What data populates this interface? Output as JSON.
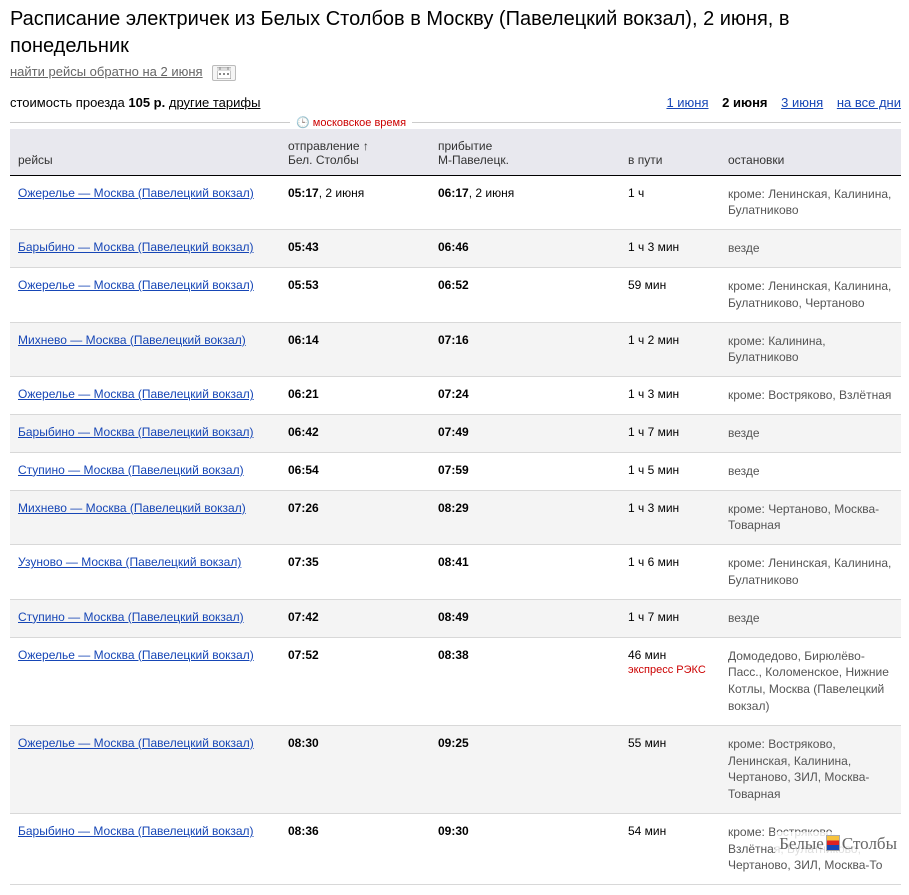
{
  "title": "Расписание электричек из Белых Столбов в Москву (Павелецкий вокзал), 2 июня, в понедельник",
  "subline": {
    "reverse_link": "найти рейсы обратно на 2 июня"
  },
  "fare": {
    "label": "стоимость проезда",
    "price": "105 р.",
    "tariffs_link": "другие тарифы"
  },
  "dateNav": {
    "prev": "1 июня",
    "current": "2 июня",
    "next": "3 июня",
    "all": "на все дни"
  },
  "moscowTimeLabel": "московское время",
  "headers": {
    "route": "рейсы",
    "dep1": "отправление ↑",
    "dep2": "Бел. Столбы",
    "arr1": "прибытие",
    "arr2": "М-Павелецк.",
    "dur": "в пути",
    "stops": "остановки"
  },
  "rows": [
    {
      "route": "Ожерелье — Москва (Павелецкий вокзал)",
      "depTime": "05:17",
      "depDate": ", 2 июня",
      "arrTime": "06:17",
      "arrDate": ", 2 июня",
      "dur": "1 ч",
      "express": "",
      "stops": "кроме: Ленинская, Калинина, Булатниково"
    },
    {
      "route": "Барыбино — Москва (Павелецкий вокзал)",
      "depTime": "05:43",
      "depDate": "",
      "arrTime": "06:46",
      "arrDate": "",
      "dur": "1 ч 3 мин",
      "express": "",
      "stops": "везде"
    },
    {
      "route": "Ожерелье — Москва (Павелецкий вокзал)",
      "depTime": "05:53",
      "depDate": "",
      "arrTime": "06:52",
      "arrDate": "",
      "dur": "59 мин",
      "express": "",
      "stops": "кроме: Ленинская, Калинина, Булатниково, Чертаново"
    },
    {
      "route": "Михнево — Москва (Павелецкий вокзал)",
      "depTime": "06:14",
      "depDate": "",
      "arrTime": "07:16",
      "arrDate": "",
      "dur": "1 ч 2 мин",
      "express": "",
      "stops": "кроме: Калинина, Булатниково"
    },
    {
      "route": "Ожерелье — Москва (Павелецкий вокзал)",
      "depTime": "06:21",
      "depDate": "",
      "arrTime": "07:24",
      "arrDate": "",
      "dur": "1 ч 3 мин",
      "express": "",
      "stops": "кроме: Востряково, Взлётная"
    },
    {
      "route": "Барыбино — Москва (Павелецкий вокзал)",
      "depTime": "06:42",
      "depDate": "",
      "arrTime": "07:49",
      "arrDate": "",
      "dur": "1 ч 7 мин",
      "express": "",
      "stops": "везде"
    },
    {
      "route": "Ступино — Москва (Павелецкий вокзал)",
      "depTime": "06:54",
      "depDate": "",
      "arrTime": "07:59",
      "arrDate": "",
      "dur": "1 ч 5 мин",
      "express": "",
      "stops": "везде"
    },
    {
      "route": "Михнево — Москва (Павелецкий вокзал)",
      "depTime": "07:26",
      "depDate": "",
      "arrTime": "08:29",
      "arrDate": "",
      "dur": "1 ч 3 мин",
      "express": "",
      "stops": "кроме: Чертаново, Москва-Товарная"
    },
    {
      "route": "Узуново — Москва (Павелецкий вокзал)",
      "depTime": "07:35",
      "depDate": "",
      "arrTime": "08:41",
      "arrDate": "",
      "dur": "1 ч 6 мин",
      "express": "",
      "stops": "кроме: Ленинская, Калинина, Булатниково"
    },
    {
      "route": "Ступино — Москва (Павелецкий вокзал)",
      "depTime": "07:42",
      "depDate": "",
      "arrTime": "08:49",
      "arrDate": "",
      "dur": "1 ч 7 мин",
      "express": "",
      "stops": "везде"
    },
    {
      "route": "Ожерелье — Москва (Павелецкий вокзал)",
      "depTime": "07:52",
      "depDate": "",
      "arrTime": "08:38",
      "arrDate": "",
      "dur": "46 мин",
      "express": "экспресс РЭКС",
      "stops": "Домодедово, Бирюлёво-Пасс., Коломенское, Нижние Котлы, Москва (Павелецкий вокзал)"
    },
    {
      "route": "Ожерелье — Москва (Павелецкий вокзал)",
      "depTime": "08:30",
      "depDate": "",
      "arrTime": "09:25",
      "arrDate": "",
      "dur": "55 мин",
      "express": "",
      "stops": "кроме: Востряково, Ленинская, Калинина, Чертаново, ЗИЛ, Москва-Товарная"
    },
    {
      "route": "Барыбино — Москва (Павелецкий вокзал)",
      "depTime": "08:36",
      "depDate": "",
      "arrTime": "09:30",
      "arrDate": "",
      "dur": "54 мин",
      "express": "",
      "stops": "кроме: Востряково, Взлётная, Булатниково, Чертаново, ЗИЛ, Москва-То"
    }
  ],
  "watermark": {
    "part1": "Белые",
    "part2": "Столбы"
  }
}
